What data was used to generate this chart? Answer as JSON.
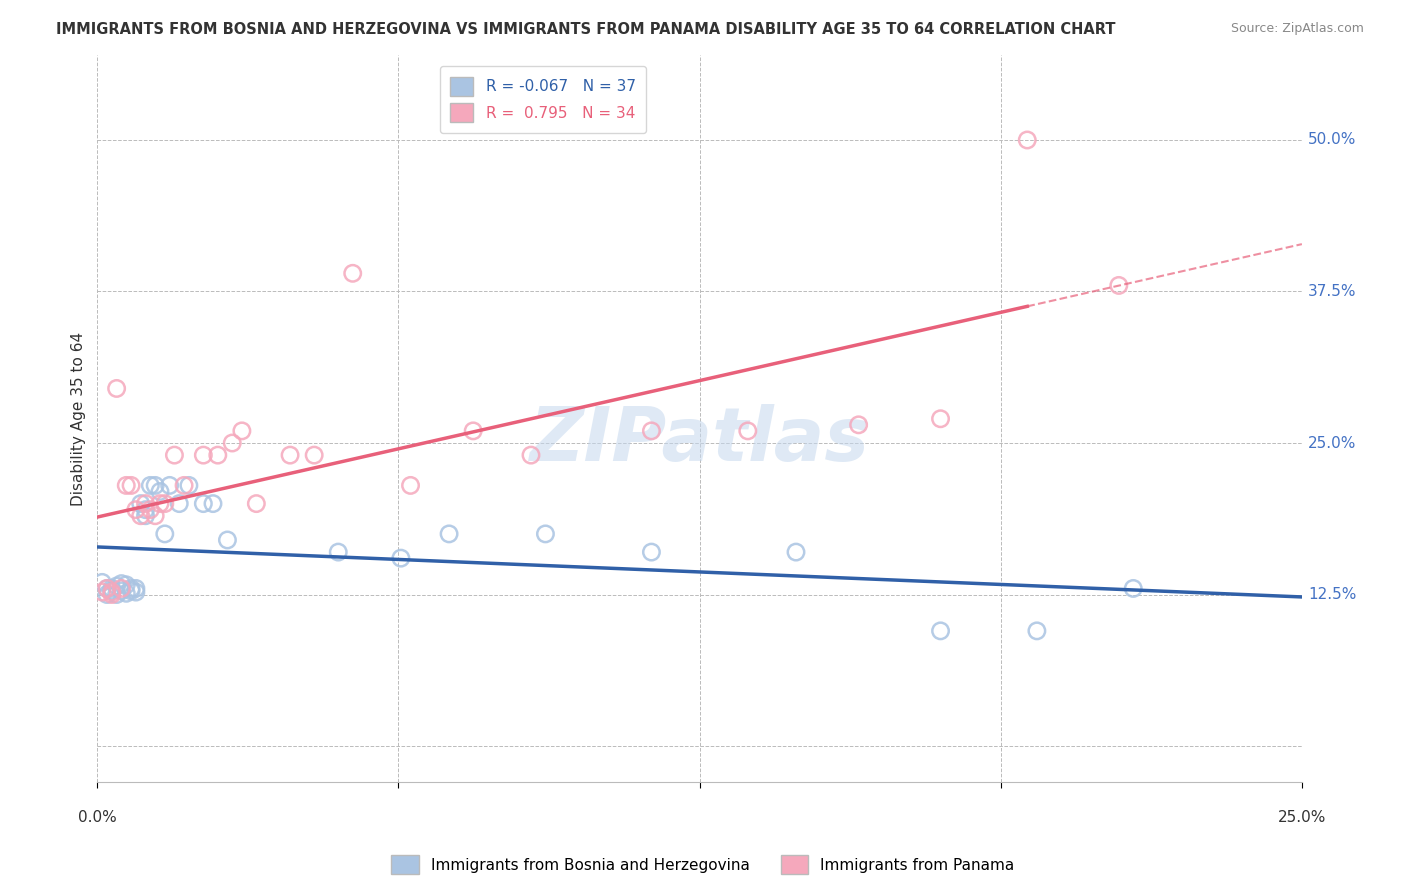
{
  "title": "IMMIGRANTS FROM BOSNIA AND HERZEGOVINA VS IMMIGRANTS FROM PANAMA DISABILITY AGE 35 TO 64 CORRELATION CHART",
  "source": "Source: ZipAtlas.com",
  "ylabel": "Disability Age 35 to 64",
  "xlim": [
    0.0,
    0.25
  ],
  "ylim": [
    -0.03,
    0.57
  ],
  "yticks": [
    0.0,
    0.125,
    0.25,
    0.375,
    0.5
  ],
  "ytick_labels": [
    "",
    "12.5%",
    "25.0%",
    "37.5%",
    "50.0%"
  ],
  "xticks": [
    0.0,
    0.0625,
    0.125,
    0.1875,
    0.25
  ],
  "xtick_labels": [
    "0.0%",
    "",
    "",
    "",
    "25.0%"
  ],
  "blue_R": -0.067,
  "blue_N": 37,
  "pink_R": 0.795,
  "pink_N": 34,
  "blue_color": "#aac4e2",
  "pink_color": "#f5a8bc",
  "blue_line_color": "#3060a8",
  "pink_line_color": "#e8607a",
  "background_color": "#ffffff",
  "grid_color": "#bbbbbb",
  "watermark": "ZIPatlas",
  "blue_scatter_x": [
    0.001,
    0.002,
    0.002,
    0.003,
    0.003,
    0.004,
    0.004,
    0.005,
    0.005,
    0.006,
    0.006,
    0.007,
    0.007,
    0.008,
    0.008,
    0.009,
    0.01,
    0.01,
    0.011,
    0.012,
    0.013,
    0.014,
    0.015,
    0.017,
    0.019,
    0.022,
    0.024,
    0.027,
    0.05,
    0.063,
    0.073,
    0.093,
    0.115,
    0.145,
    0.175,
    0.195,
    0.215
  ],
  "blue_scatter_y": [
    0.135,
    0.13,
    0.125,
    0.13,
    0.128,
    0.132,
    0.125,
    0.128,
    0.134,
    0.126,
    0.133,
    0.13,
    0.128,
    0.127,
    0.13,
    0.2,
    0.19,
    0.195,
    0.215,
    0.215,
    0.21,
    0.175,
    0.215,
    0.2,
    0.215,
    0.2,
    0.2,
    0.17,
    0.16,
    0.155,
    0.175,
    0.175,
    0.16,
    0.16,
    0.095,
    0.095,
    0.13
  ],
  "pink_scatter_x": [
    0.001,
    0.002,
    0.003,
    0.003,
    0.004,
    0.005,
    0.006,
    0.007,
    0.008,
    0.009,
    0.01,
    0.011,
    0.012,
    0.013,
    0.014,
    0.016,
    0.018,
    0.022,
    0.025,
    0.028,
    0.03,
    0.033,
    0.04,
    0.045,
    0.053,
    0.065,
    0.078,
    0.09,
    0.115,
    0.135,
    0.158,
    0.175,
    0.193,
    0.212
  ],
  "pink_scatter_y": [
    0.127,
    0.13,
    0.125,
    0.127,
    0.295,
    0.13,
    0.215,
    0.215,
    0.195,
    0.19,
    0.2,
    0.195,
    0.19,
    0.2,
    0.2,
    0.24,
    0.215,
    0.24,
    0.24,
    0.25,
    0.26,
    0.2,
    0.24,
    0.24,
    0.39,
    0.215,
    0.26,
    0.24,
    0.26,
    0.26,
    0.265,
    0.27,
    0.5,
    0.38
  ]
}
